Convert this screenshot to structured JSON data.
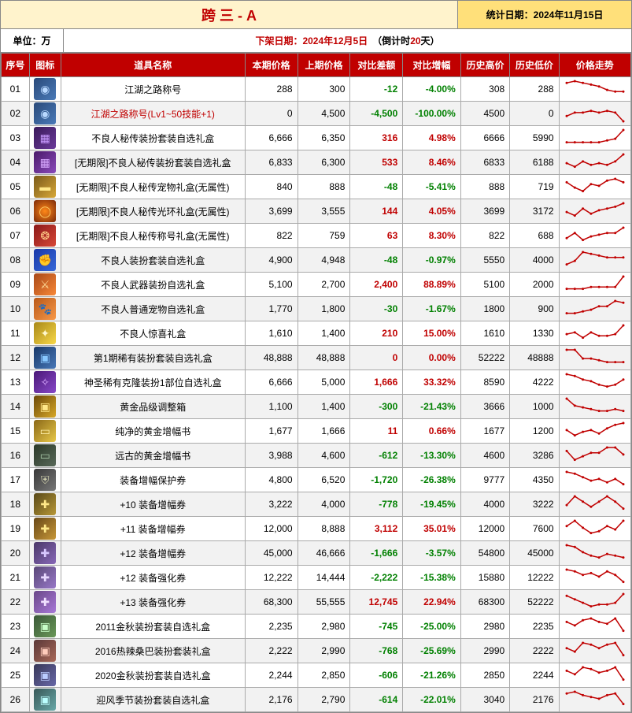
{
  "header": {
    "title": "跨 三 - A",
    "stat_date_label": "统计日期：",
    "stat_date": "2024年11月15日",
    "unit_label": "单位：万",
    "offdate_label": "下架日期：",
    "offdate": "2024年12月5日",
    "countdown_prefix": "（倒计时 ",
    "countdown_days": "20",
    "countdown_suffix": "天）"
  },
  "columns": {
    "seq": "序号",
    "icon": "图标",
    "name": "道具名称",
    "cur": "本期价格",
    "prev": "上期价格",
    "diff": "对比差额",
    "pct": "对比增幅",
    "high": "历史高价",
    "low": "历史低价",
    "trend": "价格走势"
  },
  "icon_palette": {
    "swirl_blue": {
      "bg": "linear-gradient(135deg,#2a4a7a,#4a7ab8)",
      "glyph": "◉",
      "glyph_color": "#b8d8ff"
    },
    "purple_box": {
      "bg": "linear-gradient(135deg,#3a1a5a,#6a3a9a)",
      "glyph": "▦",
      "glyph_color": "#c89aff"
    },
    "purple_box2": {
      "bg": "linear-gradient(135deg,#4a1a6a,#8a4aba)",
      "glyph": "▦",
      "glyph_color": "#d8aaff"
    },
    "gold_bar": {
      "bg": "linear-gradient(135deg,#7a5a1a,#d8a838)",
      "glyph": "▬",
      "glyph_color": "#ffe888"
    },
    "fire_ring": {
      "bg": "radial-gradient(circle,#ff8818,#7a2808)",
      "glyph": "◯",
      "glyph_color": "#ffcc66"
    },
    "red_scroll": {
      "bg": "linear-gradient(135deg,#8a1818,#d84838)",
      "glyph": "❂",
      "glyph_color": "#ffcc88"
    },
    "blue_fist": {
      "bg": "linear-gradient(135deg,#1838a8,#3868d8)",
      "glyph": "✊",
      "glyph_color": "#88b8ff"
    },
    "orange_weapon": {
      "bg": "linear-gradient(135deg,#a84818,#f88838)",
      "glyph": "⚔",
      "glyph_color": "#ffdd99"
    },
    "orange_pet": {
      "bg": "linear-gradient(135deg,#b85818,#f89848)",
      "glyph": "🐾",
      "glyph_color": "#ffddaa"
    },
    "yellow_gift": {
      "bg": "linear-gradient(135deg,#a88818,#f8d848)",
      "glyph": "✦",
      "glyph_color": "#fff8cc"
    },
    "blue_chest": {
      "bg": "linear-gradient(135deg,#183868,#4878b8)",
      "glyph": "▣",
      "glyph_color": "#88c8ff"
    },
    "purple_rune": {
      "bg": "linear-gradient(135deg,#4a1878,#8848c8)",
      "glyph": "✧",
      "glyph_color": "#d8a8ff"
    },
    "gold_chest": {
      "bg": "linear-gradient(135deg,#6a4808,#d8a828)",
      "glyph": "▣",
      "glyph_color": "#ffe888"
    },
    "gold_book": {
      "bg": "linear-gradient(135deg,#8a6818,#e8c848)",
      "glyph": "▭",
      "glyph_color": "#fff0aa"
    },
    "dark_book": {
      "bg": "linear-gradient(135deg,#2a3828,#586858)",
      "glyph": "▭",
      "glyph_color": "#a8c8a8"
    },
    "shield": {
      "bg": "linear-gradient(135deg,#383838,#787878)",
      "glyph": "⛨",
      "glyph_color": "#ccccaa"
    },
    "ticket10": {
      "bg": "linear-gradient(135deg,#584818,#b89838)",
      "glyph": "✚",
      "glyph_color": "#ffe888"
    },
    "ticket11": {
      "bg": "linear-gradient(135deg,#684818,#c89838)",
      "glyph": "✚",
      "glyph_color": "#ffe888"
    },
    "ticket12": {
      "bg": "linear-gradient(135deg,#4a3868,#8868b8)",
      "glyph": "✚",
      "glyph_color": "#d8c8ff"
    },
    "ticket12b": {
      "bg": "linear-gradient(135deg,#5a4878,#9878c8)",
      "glyph": "✚",
      "glyph_color": "#e8d8ff"
    },
    "ticket13": {
      "bg": "linear-gradient(135deg,#6a4888,#a878d8)",
      "glyph": "✚",
      "glyph_color": "#f0e0ff"
    },
    "box2011": {
      "bg": "linear-gradient(135deg,#3a5838,#6a9858)",
      "glyph": "▣",
      "glyph_color": "#c8ffc8"
    },
    "box2016": {
      "bg": "linear-gradient(135deg,#5a3838,#a86858)",
      "glyph": "▣",
      "glyph_color": "#ffccbb"
    },
    "box2020": {
      "bg": "linear-gradient(135deg,#383858,#6868a8)",
      "glyph": "▣",
      "glyph_color": "#bbccff"
    },
    "wind_box": {
      "bg": "linear-gradient(135deg,#385858,#68a8a8)",
      "glyph": "▣",
      "glyph_color": "#bbffff"
    }
  },
  "rows": [
    {
      "seq": "01",
      "icon": "swirl_blue",
      "name": "江湖之路称号",
      "cur": "288",
      "prev": "300",
      "diff": "-12",
      "pct": "-4.00%",
      "high": "308",
      "low": "288",
      "trend": [
        8,
        9,
        8,
        7,
        6,
        4,
        3,
        3
      ]
    },
    {
      "seq": "02",
      "icon": "swirl_blue",
      "name": "江湖之路称号(Lv1~50技能+1)",
      "name_red": true,
      "cur": "0",
      "prev": "4,500",
      "diff": "-4,500",
      "pct": "-100.00%",
      "high": "4500",
      "low": "0",
      "trend": [
        3,
        5,
        5,
        6,
        5,
        6,
        5,
        0
      ]
    },
    {
      "seq": "03",
      "icon": "purple_box",
      "name": "不良人秘传装扮套装自选礼盒",
      "cur": "6,666",
      "prev": "6,350",
      "diff": "316",
      "pct": "4.98%",
      "high": "6666",
      "low": "5990",
      "trend": [
        2,
        2,
        2,
        2,
        2,
        3,
        4,
        9
      ]
    },
    {
      "seq": "04",
      "icon": "purple_box2",
      "name": "[无期限]不良人秘传装扮套装自选礼盒",
      "cur": "6,833",
      "prev": "6,300",
      "diff": "533",
      "pct": "8.46%",
      "high": "6833",
      "low": "6188",
      "trend": [
        4,
        2,
        5,
        3,
        4,
        3,
        5,
        9
      ]
    },
    {
      "seq": "05",
      "icon": "gold_bar",
      "name": "[无期限]不良人秘传宠物礼盒(无属性)",
      "cur": "840",
      "prev": "888",
      "diff": "-48",
      "pct": "-5.41%",
      "high": "888",
      "low": "719",
      "trend": [
        7,
        4,
        2,
        6,
        5,
        8,
        9,
        7
      ]
    },
    {
      "seq": "06",
      "icon": "fire_ring",
      "name": "[无期限]不良人秘传光环礼盒(无属性)",
      "cur": "3,699",
      "prev": "3,555",
      "diff": "144",
      "pct": "4.05%",
      "high": "3699",
      "low": "3172",
      "trend": [
        4,
        2,
        6,
        3,
        5,
        6,
        7,
        9
      ]
    },
    {
      "seq": "07",
      "icon": "red_scroll",
      "name": "[无期限]不良人秘传称号礼盒(无属性)",
      "cur": "822",
      "prev": "759",
      "diff": "63",
      "pct": "8.30%",
      "high": "822",
      "low": "688",
      "trend": [
        3,
        6,
        2,
        4,
        5,
        6,
        6,
        9
      ]
    },
    {
      "seq": "08",
      "icon": "blue_fist",
      "name": "不良人装扮套装自选礼盒",
      "cur": "4,900",
      "prev": "4,948",
      "diff": "-48",
      "pct": "-0.97%",
      "high": "5550",
      "low": "4000",
      "trend": [
        2,
        4,
        9,
        8,
        7,
        6,
        6,
        6
      ]
    },
    {
      "seq": "09",
      "icon": "orange_weapon",
      "name": "不良人武器装扮自选礼盒",
      "cur": "5,100",
      "prev": "2,700",
      "diff": "2,400",
      "pct": "88.89%",
      "high": "5100",
      "low": "2000",
      "trend": [
        2,
        2,
        2,
        3,
        3,
        3,
        3,
        9
      ]
    },
    {
      "seq": "10",
      "icon": "orange_pet",
      "name": "不良人普通宠物自选礼盒",
      "cur": "1,770",
      "prev": "1,800",
      "diff": "-30",
      "pct": "-1.67%",
      "high": "1800",
      "low": "900",
      "trend": [
        2,
        2,
        3,
        4,
        6,
        6,
        9,
        8
      ]
    },
    {
      "seq": "11",
      "icon": "yellow_gift",
      "name": "不良人惊喜礼盒",
      "cur": "1,610",
      "prev": "1,400",
      "diff": "210",
      "pct": "15.00%",
      "high": "1610",
      "low": "1330",
      "trend": [
        4,
        5,
        2,
        5,
        3,
        3,
        4,
        9
      ]
    },
    {
      "seq": "12",
      "icon": "blue_chest",
      "name": "第1期稀有装扮套装自选礼盒",
      "cur": "48,888",
      "prev": "48,888",
      "diff": "0",
      "pct": "0.00%",
      "high": "52222",
      "low": "48888",
      "trend": [
        9,
        9,
        4,
        4,
        3,
        2,
        2,
        2
      ]
    },
    {
      "seq": "13",
      "icon": "purple_rune",
      "name": "神圣稀有克隆装扮1部位自选礼盒",
      "cur": "6,666",
      "prev": "5,000",
      "diff": "1,666",
      "pct": "33.32%",
      "high": "8590",
      "low": "4222",
      "trend": [
        9,
        8,
        6,
        5,
        3,
        2,
        3,
        6
      ]
    },
    {
      "seq": "14",
      "icon": "gold_chest",
      "name": "黄金品级调整箱",
      "cur": "1,100",
      "prev": "1,400",
      "diff": "-300",
      "pct": "-21.43%",
      "high": "3666",
      "low": "1000",
      "trend": [
        9,
        5,
        4,
        3,
        2,
        2,
        3,
        2
      ]
    },
    {
      "seq": "15",
      "icon": "gold_book",
      "name": "纯净的黄金增幅书",
      "cur": "1,677",
      "prev": "1,666",
      "diff": "11",
      "pct": "0.66%",
      "high": "1677",
      "low": "1200",
      "trend": [
        5,
        2,
        4,
        5,
        3,
        6,
        8,
        9
      ]
    },
    {
      "seq": "16",
      "icon": "dark_book",
      "name": "远古的黄金增幅书",
      "cur": "3,988",
      "prev": "4,600",
      "diff": "-612",
      "pct": "-13.30%",
      "high": "4600",
      "low": "3286",
      "trend": [
        7,
        2,
        4,
        6,
        6,
        9,
        9,
        5
      ]
    },
    {
      "seq": "17",
      "icon": "shield",
      "name": "装备增幅保护券",
      "cur": "4,800",
      "prev": "6,520",
      "diff": "-1,720",
      "pct": "-26.38%",
      "high": "9777",
      "low": "4350",
      "trend": [
        9,
        8,
        6,
        4,
        5,
        3,
        5,
        2
      ]
    },
    {
      "seq": "18",
      "icon": "ticket10",
      "name": "+10 装备增幅券",
      "cur": "3,222",
      "prev": "4,000",
      "diff": "-778",
      "pct": "-19.45%",
      "high": "4000",
      "low": "3222",
      "trend": [
        4,
        9,
        6,
        3,
        6,
        9,
        6,
        2
      ]
    },
    {
      "seq": "19",
      "icon": "ticket11",
      "name": "+11 装备增幅券",
      "cur": "12,000",
      "prev": "8,888",
      "diff": "3,112",
      "pct": "35.01%",
      "high": "12000",
      "low": "7600",
      "trend": [
        6,
        9,
        5,
        2,
        3,
        6,
        4,
        9
      ]
    },
    {
      "seq": "20",
      "icon": "ticket12",
      "name": "+12 装备增幅券",
      "cur": "45,000",
      "prev": "46,666",
      "diff": "-1,666",
      "pct": "-3.57%",
      "high": "54800",
      "low": "45000",
      "trend": [
        9,
        8,
        5,
        3,
        2,
        4,
        3,
        2
      ]
    },
    {
      "seq": "21",
      "icon": "ticket12b",
      "name": "+12 装备强化券",
      "cur": "12,222",
      "prev": "14,444",
      "diff": "-2,222",
      "pct": "-15.38%",
      "high": "15880",
      "low": "12222",
      "trend": [
        9,
        8,
        6,
        7,
        5,
        8,
        6,
        2
      ]
    },
    {
      "seq": "22",
      "icon": "ticket13",
      "name": "+13 装备强化券",
      "cur": "68,300",
      "prev": "55,555",
      "diff": "12,745",
      "pct": "22.94%",
      "high": "68300",
      "low": "52222",
      "trend": [
        8,
        6,
        4,
        2,
        3,
        3,
        4,
        9
      ]
    },
    {
      "seq": "23",
      "icon": "box2011",
      "name": "2011金秋装扮套装自选礼盒",
      "cur": "2,235",
      "prev": "2,980",
      "diff": "-745",
      "pct": "-25.00%",
      "high": "2980",
      "low": "2235",
      "trend": [
        7,
        5,
        8,
        9,
        7,
        6,
        9,
        2
      ]
    },
    {
      "seq": "24",
      "icon": "box2016",
      "name": "2016热辣桑巴装扮套装礼盒",
      "cur": "2,222",
      "prev": "2,990",
      "diff": "-768",
      "pct": "-25.69%",
      "high": "2990",
      "low": "2222",
      "trend": [
        6,
        4,
        9,
        8,
        6,
        8,
        9,
        2
      ]
    },
    {
      "seq": "25",
      "icon": "box2020",
      "name": "2020金秋装扮套装自选礼盒",
      "cur": "2,244",
      "prev": "2,850",
      "diff": "-606",
      "pct": "-21.26%",
      "high": "2850",
      "low": "2244",
      "trend": [
        7,
        5,
        9,
        8,
        6,
        7,
        9,
        2
      ]
    },
    {
      "seq": "26",
      "icon": "wind_box",
      "name": "迎风季节装扮套装自选礼盒",
      "cur": "2,176",
      "prev": "2,790",
      "diff": "-614",
      "pct": "-22.01%",
      "high": "3040",
      "low": "2176",
      "trend": [
        8,
        9,
        7,
        6,
        5,
        7,
        8,
        2
      ]
    }
  ]
}
